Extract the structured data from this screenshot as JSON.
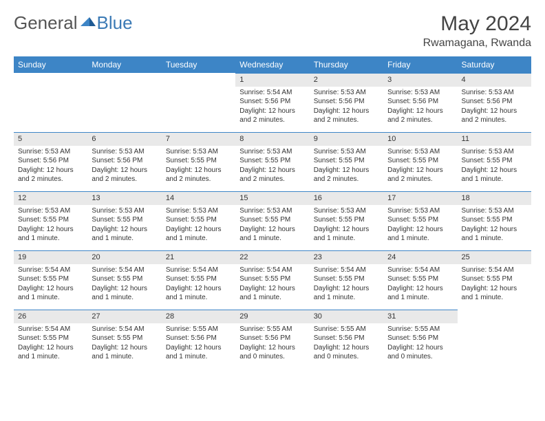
{
  "logo": {
    "text1": "General",
    "text2": "Blue"
  },
  "title": "May 2024",
  "location": "Rwamagana, Rwanda",
  "colors": {
    "header_bg": "#3d85c6",
    "daynum_bg": "#e9e9e9",
    "border": "#3d85c6"
  },
  "day_headers": [
    "Sunday",
    "Monday",
    "Tuesday",
    "Wednesday",
    "Thursday",
    "Friday",
    "Saturday"
  ],
  "weeks": [
    [
      null,
      null,
      null,
      {
        "n": "1",
        "sr": "5:54 AM",
        "ss": "5:56 PM",
        "dl": "12 hours and 2 minutes."
      },
      {
        "n": "2",
        "sr": "5:53 AM",
        "ss": "5:56 PM",
        "dl": "12 hours and 2 minutes."
      },
      {
        "n": "3",
        "sr": "5:53 AM",
        "ss": "5:56 PM",
        "dl": "12 hours and 2 minutes."
      },
      {
        "n": "4",
        "sr": "5:53 AM",
        "ss": "5:56 PM",
        "dl": "12 hours and 2 minutes."
      }
    ],
    [
      {
        "n": "5",
        "sr": "5:53 AM",
        "ss": "5:56 PM",
        "dl": "12 hours and 2 minutes."
      },
      {
        "n": "6",
        "sr": "5:53 AM",
        "ss": "5:56 PM",
        "dl": "12 hours and 2 minutes."
      },
      {
        "n": "7",
        "sr": "5:53 AM",
        "ss": "5:55 PM",
        "dl": "12 hours and 2 minutes."
      },
      {
        "n": "8",
        "sr": "5:53 AM",
        "ss": "5:55 PM",
        "dl": "12 hours and 2 minutes."
      },
      {
        "n": "9",
        "sr": "5:53 AM",
        "ss": "5:55 PM",
        "dl": "12 hours and 2 minutes."
      },
      {
        "n": "10",
        "sr": "5:53 AM",
        "ss": "5:55 PM",
        "dl": "12 hours and 2 minutes."
      },
      {
        "n": "11",
        "sr": "5:53 AM",
        "ss": "5:55 PM",
        "dl": "12 hours and 1 minute."
      }
    ],
    [
      {
        "n": "12",
        "sr": "5:53 AM",
        "ss": "5:55 PM",
        "dl": "12 hours and 1 minute."
      },
      {
        "n": "13",
        "sr": "5:53 AM",
        "ss": "5:55 PM",
        "dl": "12 hours and 1 minute."
      },
      {
        "n": "14",
        "sr": "5:53 AM",
        "ss": "5:55 PM",
        "dl": "12 hours and 1 minute."
      },
      {
        "n": "15",
        "sr": "5:53 AM",
        "ss": "5:55 PM",
        "dl": "12 hours and 1 minute."
      },
      {
        "n": "16",
        "sr": "5:53 AM",
        "ss": "5:55 PM",
        "dl": "12 hours and 1 minute."
      },
      {
        "n": "17",
        "sr": "5:53 AM",
        "ss": "5:55 PM",
        "dl": "12 hours and 1 minute."
      },
      {
        "n": "18",
        "sr": "5:53 AM",
        "ss": "5:55 PM",
        "dl": "12 hours and 1 minute."
      }
    ],
    [
      {
        "n": "19",
        "sr": "5:54 AM",
        "ss": "5:55 PM",
        "dl": "12 hours and 1 minute."
      },
      {
        "n": "20",
        "sr": "5:54 AM",
        "ss": "5:55 PM",
        "dl": "12 hours and 1 minute."
      },
      {
        "n": "21",
        "sr": "5:54 AM",
        "ss": "5:55 PM",
        "dl": "12 hours and 1 minute."
      },
      {
        "n": "22",
        "sr": "5:54 AM",
        "ss": "5:55 PM",
        "dl": "12 hours and 1 minute."
      },
      {
        "n": "23",
        "sr": "5:54 AM",
        "ss": "5:55 PM",
        "dl": "12 hours and 1 minute."
      },
      {
        "n": "24",
        "sr": "5:54 AM",
        "ss": "5:55 PM",
        "dl": "12 hours and 1 minute."
      },
      {
        "n": "25",
        "sr": "5:54 AM",
        "ss": "5:55 PM",
        "dl": "12 hours and 1 minute."
      }
    ],
    [
      {
        "n": "26",
        "sr": "5:54 AM",
        "ss": "5:55 PM",
        "dl": "12 hours and 1 minute."
      },
      {
        "n": "27",
        "sr": "5:54 AM",
        "ss": "5:55 PM",
        "dl": "12 hours and 1 minute."
      },
      {
        "n": "28",
        "sr": "5:55 AM",
        "ss": "5:56 PM",
        "dl": "12 hours and 1 minute."
      },
      {
        "n": "29",
        "sr": "5:55 AM",
        "ss": "5:56 PM",
        "dl": "12 hours and 0 minutes."
      },
      {
        "n": "30",
        "sr": "5:55 AM",
        "ss": "5:56 PM",
        "dl": "12 hours and 0 minutes."
      },
      {
        "n": "31",
        "sr": "5:55 AM",
        "ss": "5:56 PM",
        "dl": "12 hours and 0 minutes."
      },
      null
    ]
  ],
  "labels": {
    "sunrise": "Sunrise:",
    "sunset": "Sunset:",
    "daylight": "Daylight:"
  }
}
